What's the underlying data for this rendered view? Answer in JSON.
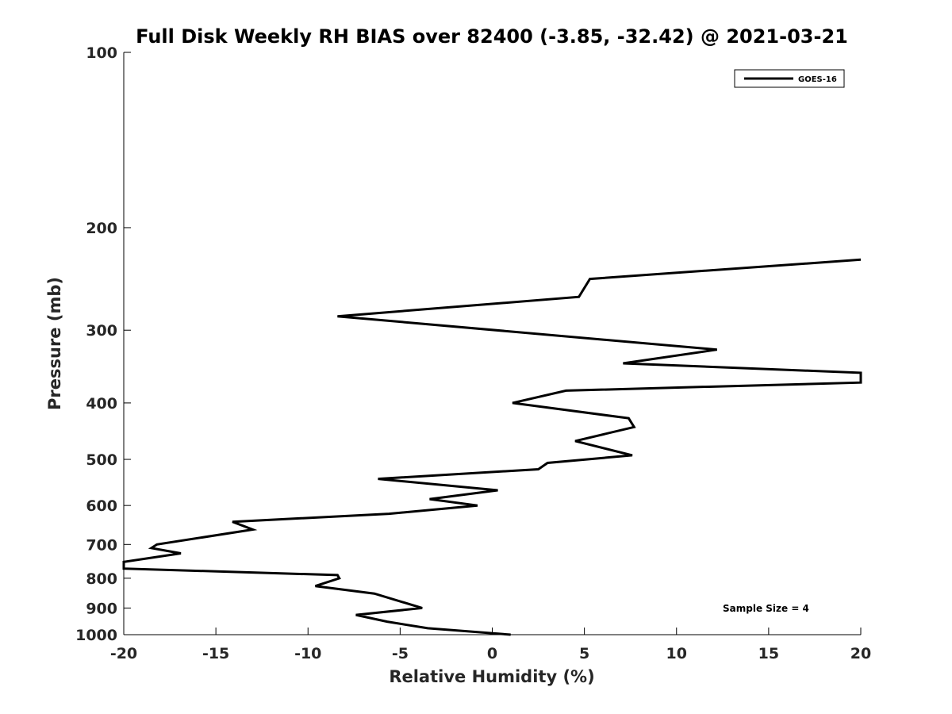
{
  "chart_data": {
    "type": "line",
    "title": "Full Disk Weekly RH BIAS over 82400 (-3.85, -32.42) @ 2021-03-21",
    "xlabel": "Relative Humidity (%)",
    "ylabel": "Pressure (mb)",
    "xlim": [
      -20,
      20
    ],
    "ylim": [
      1000,
      100
    ],
    "y_scale": "log",
    "x_ticks": [
      -20,
      -15,
      -10,
      -5,
      0,
      5,
      10,
      15,
      20
    ],
    "x_tick_labels": [
      "-20",
      "-15",
      "-10",
      "-5",
      "0",
      "5",
      "10",
      "15",
      "20"
    ],
    "y_ticks": [
      100,
      200,
      300,
      400,
      500,
      600,
      700,
      800,
      900,
      1000
    ],
    "y_tick_labels": [
      "100",
      "200",
      "300",
      "400",
      "500",
      "600",
      "700",
      "800",
      "900",
      "1000"
    ],
    "grid": false,
    "legend_position": "top-right",
    "series": [
      {
        "name": "GOES-16",
        "color": "#000000",
        "points": [
          {
            "x": 1.0,
            "p": 1000
          },
          {
            "x": -3.5,
            "p": 975
          },
          {
            "x": -5.7,
            "p": 950
          },
          {
            "x": -7.4,
            "p": 925
          },
          {
            "x": -3.8,
            "p": 900
          },
          {
            "x": -6.4,
            "p": 850
          },
          {
            "x": -9.6,
            "p": 825
          },
          {
            "x": -8.3,
            "p": 800
          },
          {
            "x": -8.4,
            "p": 790
          },
          {
            "x": -20.0,
            "p": 770
          },
          {
            "x": -20.0,
            "p": 750
          },
          {
            "x": -16.9,
            "p": 725
          },
          {
            "x": -18.5,
            "p": 710
          },
          {
            "x": -18.2,
            "p": 700
          },
          {
            "x": -13.0,
            "p": 660
          },
          {
            "x": -14.1,
            "p": 640
          },
          {
            "x": -5.6,
            "p": 620
          },
          {
            "x": -0.8,
            "p": 600
          },
          {
            "x": -3.4,
            "p": 585
          },
          {
            "x": 0.3,
            "p": 565
          },
          {
            "x": -6.2,
            "p": 540
          },
          {
            "x": 2.5,
            "p": 520
          },
          {
            "x": 3.0,
            "p": 507
          },
          {
            "x": 7.6,
            "p": 492
          },
          {
            "x": 4.5,
            "p": 465
          },
          {
            "x": 7.7,
            "p": 440
          },
          {
            "x": 7.4,
            "p": 425
          },
          {
            "x": 1.1,
            "p": 400
          },
          {
            "x": 4.0,
            "p": 381
          },
          {
            "x": 20.0,
            "p": 369
          },
          {
            "x": 20.0,
            "p": 355
          },
          {
            "x": 7.1,
            "p": 342
          },
          {
            "x": 12.2,
            "p": 324
          },
          {
            "x": -8.4,
            "p": 284
          },
          {
            "x": 4.7,
            "p": 263
          },
          {
            "x": 5.3,
            "p": 245
          },
          {
            "x": 20.0,
            "p": 227
          }
        ]
      }
    ],
    "annotations": [
      "Sample Size = 4"
    ]
  }
}
